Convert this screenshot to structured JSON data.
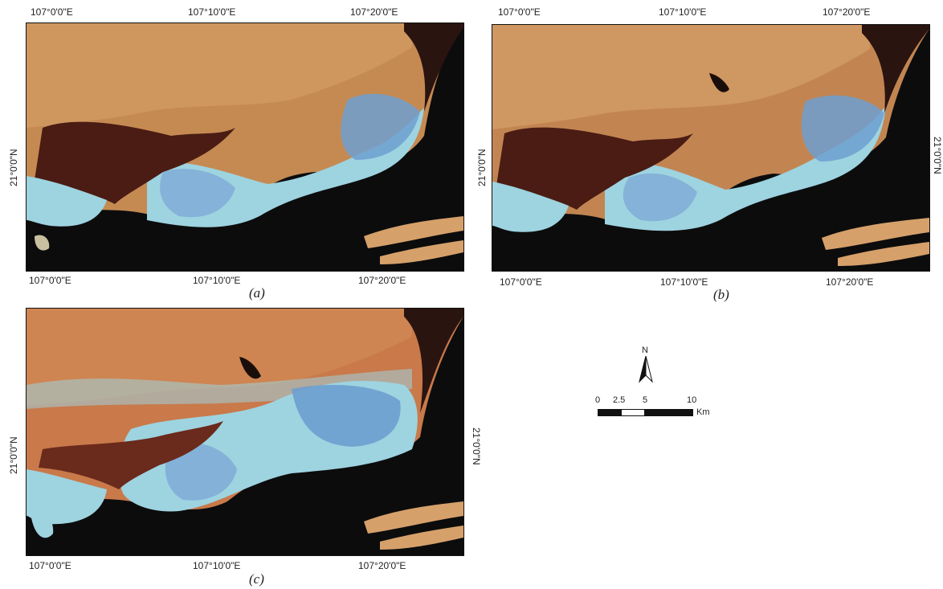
{
  "panels": [
    {
      "id": "a",
      "caption": "(a)",
      "top_lon": [
        "107°0'0\"E",
        "107°10'0\"E",
        "107°20'0\"E"
      ],
      "bottom_lon": [
        "107°0'0\"E",
        "107°10'0\"E",
        "107°20'0\"E"
      ],
      "left_lat": "21°0'0\"N",
      "right_lat": ""
    },
    {
      "id": "b",
      "caption": "(b)",
      "top_lon": [
        "107°0'0\"E",
        "107°10'0\"E",
        "107°20'0\"E"
      ],
      "bottom_lon": [
        "107°0'0\"E",
        "107°10'0\"E",
        "107°20'0\"E"
      ],
      "left_lat": "21°0'0\"N",
      "right_lat": "21°0'0\"N"
    },
    {
      "id": "c",
      "caption": "(c)",
      "top_lon": [],
      "bottom_lon": [
        "107°0'0\"E",
        "107°10'0\"E",
        "107°20'0\"E"
      ],
      "left_lat": "21°0'0\"N",
      "right_lat": "21°0'0\"N"
    }
  ],
  "legend": {
    "north": "N",
    "scale_labels": [
      "0",
      "2.5",
      "5",
      "10"
    ],
    "unit": "Km"
  },
  "colors": {
    "land_orange": "#c9894e",
    "land_red": "#b8653a",
    "urban_cyan": "#9ed3e0",
    "water_dark": "#0c0c0d",
    "estuary_brown": "#4a1c14",
    "mine_blue": "#6d9fd0"
  }
}
